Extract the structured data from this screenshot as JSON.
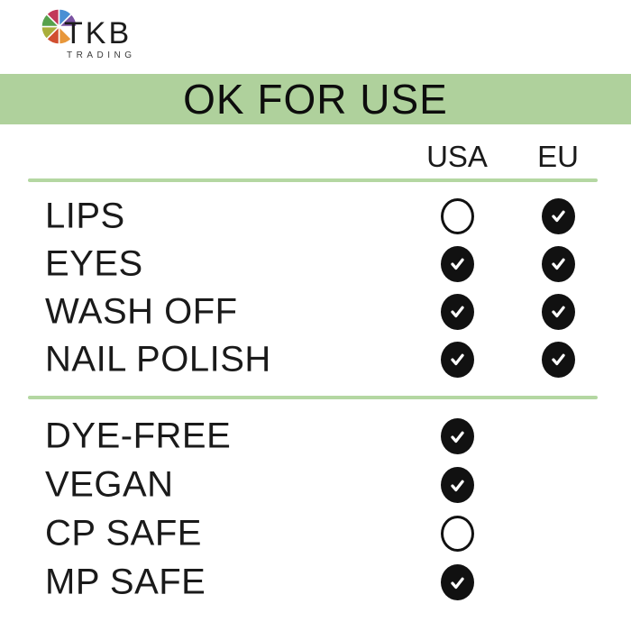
{
  "logo": {
    "brand": "TKB",
    "subtitle": "TRADING",
    "wheel_colors": {
      "crimson": "#c2385a",
      "blue": "#4a8fd4",
      "purple": "#7a52a1",
      "orange": "#e8973b",
      "red": "#d14f30",
      "olive": "#aaae3b",
      "green": "#57a14c"
    }
  },
  "banner": {
    "title": "OK FOR USE"
  },
  "colors": {
    "banner_green": "#afd19c",
    "divider_green": "#b4d7a2",
    "mark_black": "#111111",
    "text": "#1a1a1a"
  },
  "table": {
    "columns": [
      "USA",
      "EU"
    ],
    "sections": [
      {
        "rows": [
          {
            "label": "LIPS",
            "usa": "empty",
            "eu": "check"
          },
          {
            "label": "EYES",
            "usa": "check",
            "eu": "check"
          },
          {
            "label": "WASH OFF",
            "usa": "check",
            "eu": "check"
          },
          {
            "label": "NAIL POLISH",
            "usa": "check",
            "eu": "check"
          }
        ]
      },
      {
        "rows": [
          {
            "label": "DYE-FREE",
            "usa": "check",
            "eu": "none"
          },
          {
            "label": "VEGAN",
            "usa": "check",
            "eu": "none"
          },
          {
            "label": "CP SAFE",
            "usa": "empty",
            "eu": "none"
          },
          {
            "label": "MP SAFE",
            "usa": "check",
            "eu": "none"
          }
        ]
      }
    ]
  },
  "icons": {
    "check": "black filled circle with white checkmark",
    "empty": "black outlined empty circle"
  },
  "chart_data": {
    "type": "table",
    "title": "OK FOR USE",
    "columns": [
      "USA",
      "EU"
    ],
    "rows": [
      {
        "label": "LIPS",
        "USA": false,
        "EU": true
      },
      {
        "label": "EYES",
        "USA": true,
        "EU": true
      },
      {
        "label": "WASH OFF",
        "USA": true,
        "EU": true
      },
      {
        "label": "NAIL POLISH",
        "USA": true,
        "EU": true
      },
      {
        "label": "DYE-FREE",
        "USA": true,
        "EU": null
      },
      {
        "label": "VEGAN",
        "USA": true,
        "EU": null
      },
      {
        "label": "CP SAFE",
        "USA": false,
        "EU": null
      },
      {
        "label": "MP SAFE",
        "USA": true,
        "EU": null
      }
    ]
  }
}
